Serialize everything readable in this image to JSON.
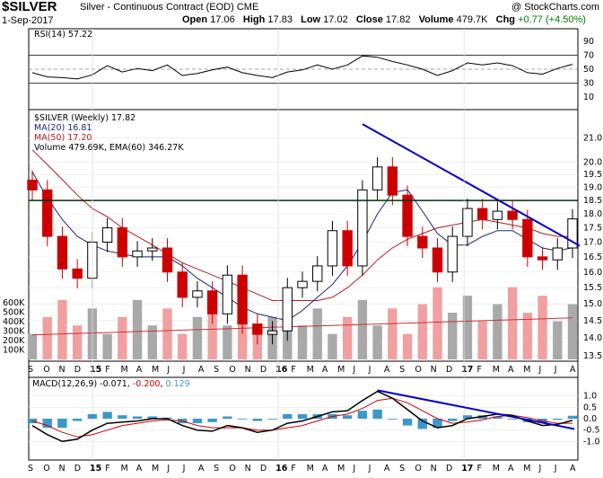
{
  "header": {
    "symbol": "$SILVER",
    "description": "Silver - Continuous Contract (EOD)",
    "exchange": "CME",
    "copyright": "@ StockCharts.com",
    "date": "1-Sep-2017",
    "open_label": "Open",
    "open": "17.06",
    "high_label": "High",
    "high": "17.83",
    "low_label": "Low",
    "low": "17.02",
    "close_label": "Close",
    "close": "17.82",
    "volume_label": "Volume",
    "volume": "479.7K",
    "chg_label": "Chg",
    "chg": "+0.77 (+4.50%)"
  },
  "colors": {
    "price_up": "#000000",
    "price_down": "#cc0000",
    "ma20": "#1a237e",
    "ma50": "#b71c1c",
    "volume_up": "#a9a9a9",
    "volume_down": "#f0a0a0",
    "trendline": "#0000cc",
    "resistance": "#003300",
    "macd_hist": "#3a98cc",
    "macd_line": "#000000",
    "signal_line": "#cc0000"
  },
  "chart_data": [
    {
      "panel": "RSI",
      "type": "line",
      "legend": "RSI(14) 57.22",
      "ylim": [
        0,
        100
      ],
      "y_ticks": [
        10,
        30,
        50,
        70,
        90
      ],
      "reference_lines": [
        30,
        50,
        70
      ],
      "x": [
        "2014-09",
        "2014-10",
        "2014-11",
        "2014-12",
        "2015-01",
        "2015-02",
        "2015-03",
        "2015-04",
        "2015-05",
        "2015-06",
        "2015-07",
        "2015-08",
        "2015-09",
        "2015-10",
        "2015-11",
        "2015-12",
        "2016-01",
        "2016-02",
        "2016-03",
        "2016-04",
        "2016-05",
        "2016-06",
        "2016-07",
        "2016-08",
        "2016-09",
        "2016-10",
        "2016-11",
        "2016-12",
        "2017-01",
        "2017-02",
        "2017-03",
        "2017-04",
        "2017-05",
        "2017-06",
        "2017-07",
        "2017-08",
        "2017-09"
      ],
      "values": [
        45,
        39,
        38,
        36,
        42,
        55,
        46,
        51,
        48,
        56,
        41,
        44,
        49,
        53,
        45,
        41,
        38,
        46,
        49,
        56,
        50,
        56,
        69,
        67,
        61,
        56,
        50,
        41,
        48,
        59,
        56,
        59,
        55,
        45,
        43,
        51,
        57
      ]
    },
    {
      "panel": "Price",
      "type": "candlestick",
      "legend": "$SILVER (Weekly) 17.82",
      "ma20_label": "MA(20) 16.81",
      "ma50_label": "MA(50) 17.20",
      "volume_label": "Volume 479.69K, EMA(60) 346.27K",
      "y_scale": "log",
      "ylim": [
        13.5,
        22
      ],
      "y_ticks": [
        13.5,
        14.0,
        14.5,
        15.0,
        15.5,
        16.0,
        16.5,
        17.0,
        17.5,
        18.0,
        18.5,
        19.0,
        19.5,
        20.0,
        21.0
      ],
      "volume_ticks": [
        "100K",
        "200K",
        "300K",
        "400K",
        "500K",
        "600K"
      ],
      "x_ticks": [
        "S",
        "O",
        "N",
        "D",
        "15",
        "F",
        "M",
        "A",
        "M",
        "J",
        "J",
        "A",
        "S",
        "O",
        "N",
        "D",
        "16",
        "F",
        "M",
        "A",
        "M",
        "J",
        "J",
        "A",
        "S",
        "O",
        "N",
        "D",
        "17",
        "F",
        "M",
        "A",
        "M",
        "J",
        "J",
        "A"
      ],
      "x": [
        "2014-09",
        "2014-10",
        "2014-11",
        "2014-12",
        "2015-01",
        "2015-02",
        "2015-03",
        "2015-04",
        "2015-05",
        "2015-06",
        "2015-07",
        "2015-08",
        "2015-09",
        "2015-10",
        "2015-11",
        "2015-12",
        "2016-01",
        "2016-02",
        "2016-03",
        "2016-04",
        "2016-05",
        "2016-06",
        "2016-07",
        "2016-08",
        "2016-09",
        "2016-10",
        "2016-11",
        "2016-12",
        "2017-01",
        "2017-02",
        "2017-03",
        "2017-04",
        "2017-05",
        "2017-06",
        "2017-07",
        "2017-08",
        "2017-09"
      ],
      "close": [
        18.9,
        17.2,
        16.1,
        15.8,
        17.0,
        17.5,
        16.5,
        16.7,
        16.8,
        16.0,
        15.2,
        15.4,
        14.7,
        15.9,
        14.4,
        14.1,
        14.2,
        15.5,
        15.7,
        16.2,
        17.4,
        16.2,
        18.9,
        19.8,
        18.7,
        17.2,
        16.8,
        16.0,
        17.2,
        18.2,
        17.8,
        18.1,
        17.8,
        16.5,
        16.4,
        16.8,
        17.82
      ],
      "ma20": [
        19.6,
        18.6,
        17.8,
        17.2,
        16.9,
        16.7,
        16.6,
        16.5,
        16.5,
        16.5,
        16.2,
        15.8,
        15.5,
        15.2,
        14.9,
        14.7,
        14.6,
        14.5,
        14.8,
        15.2,
        15.6,
        16.2,
        17.0,
        18.0,
        18.8,
        18.9,
        18.1,
        17.3,
        16.9,
        16.9,
        17.2,
        17.4,
        17.4,
        17.1,
        16.8,
        16.7,
        16.81
      ],
      "ma50": [
        20.5,
        19.9,
        19.3,
        18.7,
        18.2,
        17.9,
        17.5,
        17.2,
        16.9,
        16.6,
        16.3,
        16.1,
        15.9,
        15.7,
        15.5,
        15.3,
        15.1,
        15.1,
        15.1,
        15.1,
        15.2,
        15.5,
        15.9,
        16.4,
        16.8,
        17.1,
        17.3,
        17.5,
        17.6,
        17.7,
        17.8,
        17.7,
        17.6,
        17.5,
        17.3,
        17.2,
        17.2
      ],
      "annotations": [
        {
          "type": "trendline",
          "from": [
            "2016-07",
            21.6
          ],
          "to": [
            "2017-09",
            17.0
          ]
        },
        {
          "type": "horizontal",
          "y": 18.5
        }
      ]
    },
    {
      "panel": "MACD",
      "type": "line",
      "legend_label": "MACD(12,26,9)",
      "macd_value": "-0.071",
      "signal_value": "-0.200",
      "hist_value": "0.129",
      "ylim": [
        -1.5,
        1.5
      ],
      "y_ticks": [
        -1.0,
        -0.5,
        0.0,
        0.5,
        1.0
      ],
      "x": [
        "2014-09",
        "2014-10",
        "2014-11",
        "2014-12",
        "2015-01",
        "2015-02",
        "2015-03",
        "2015-04",
        "2015-05",
        "2015-06",
        "2015-07",
        "2015-08",
        "2015-09",
        "2015-10",
        "2015-11",
        "2015-12",
        "2016-01",
        "2016-02",
        "2016-03",
        "2016-04",
        "2016-05",
        "2016-06",
        "2016-07",
        "2016-08",
        "2016-09",
        "2016-10",
        "2016-11",
        "2016-12",
        "2017-01",
        "2017-02",
        "2017-03",
        "2017-04",
        "2017-05",
        "2017-06",
        "2017-07",
        "2017-08",
        "2017-09"
      ],
      "macd": [
        -0.3,
        -0.7,
        -1.0,
        -0.9,
        -0.5,
        -0.2,
        -0.15,
        -0.1,
        0.0,
        0.0,
        -0.3,
        -0.5,
        -0.55,
        -0.3,
        -0.4,
        -0.6,
        -0.5,
        -0.2,
        -0.1,
        0.1,
        0.3,
        0.35,
        0.8,
        1.2,
        0.9,
        0.4,
        -0.1,
        -0.4,
        -0.3,
        0.0,
        0.1,
        0.2,
        0.15,
        -0.1,
        -0.3,
        -0.25,
        -0.07
      ],
      "signal": [
        -0.1,
        -0.3,
        -0.6,
        -0.8,
        -0.7,
        -0.5,
        -0.3,
        -0.2,
        -0.1,
        -0.05,
        -0.1,
        -0.3,
        -0.4,
        -0.4,
        -0.4,
        -0.5,
        -0.5,
        -0.4,
        -0.3,
        -0.1,
        0.1,
        0.2,
        0.45,
        0.8,
        0.9,
        0.7,
        0.35,
        0.0,
        -0.2,
        -0.15,
        -0.05,
        0.1,
        0.15,
        0.05,
        -0.1,
        -0.2,
        -0.2
      ],
      "annotations": [
        {
          "type": "trendline",
          "from": [
            "2016-08",
            1.25
          ],
          "to": [
            "2017-09",
            -0.45
          ]
        }
      ]
    }
  ]
}
